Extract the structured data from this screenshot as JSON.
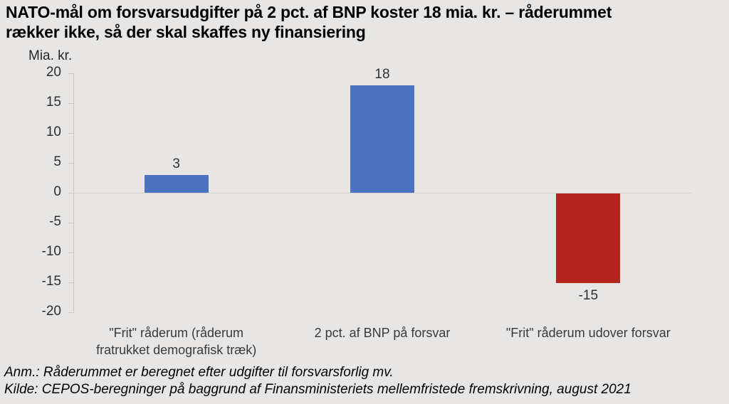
{
  "title": {
    "line1": "NATO-mål om forsvarsudgifter på 2 pct. af BNP koster 18 mia. kr. – råderummet",
    "line2": "rækker ikke, så der skal skaffes ny finansiering"
  },
  "chart_data": {
    "type": "bar",
    "title": "NATO-mål om forsvarsudgifter på 2 pct. af BNP koster 18 mia. kr. – råderummet rækker ikke, så der skal skaffes ny finansiering",
    "ylabel": "Mia. kr.",
    "xlabel": "",
    "categories": [
      "\"Frit\" råderum (råderum fratrukket demografisk træk)",
      "2 pct. af BNP på forsvar",
      "\"Frit\" råderum udover forsvar"
    ],
    "values": [
      3,
      18,
      -15
    ],
    "data_labels": [
      "3",
      "18",
      "-15"
    ],
    "bar_colors": [
      "#4C73BF",
      "#4C73BF",
      "#B2261D"
    ],
    "ylim": [
      -20,
      20
    ],
    "yticks": [
      20,
      15,
      10,
      5,
      0,
      -5,
      -10,
      -15,
      -20
    ],
    "grid": "zero-baseline-dotted-only",
    "legend": "none"
  },
  "notes": {
    "anm": "Anm.: Råderummet er beregnet efter udgifter til forsvarsforlig mv.",
    "kilde": "Kilde: CEPOS-beregninger på baggrund af Finansministeriets mellemfristede fremskrivning, august 2021"
  },
  "colors": {
    "background": "#E7E6E4",
    "bar_blue": "#4C73BF",
    "bar_red": "#B2261D",
    "axis_line": "#C8C7C4",
    "zero_gridline": "#C6C5C2",
    "title_text": "#000000",
    "tick_text": "#2E2E2E",
    "category_text": "#3A3A3A"
  }
}
